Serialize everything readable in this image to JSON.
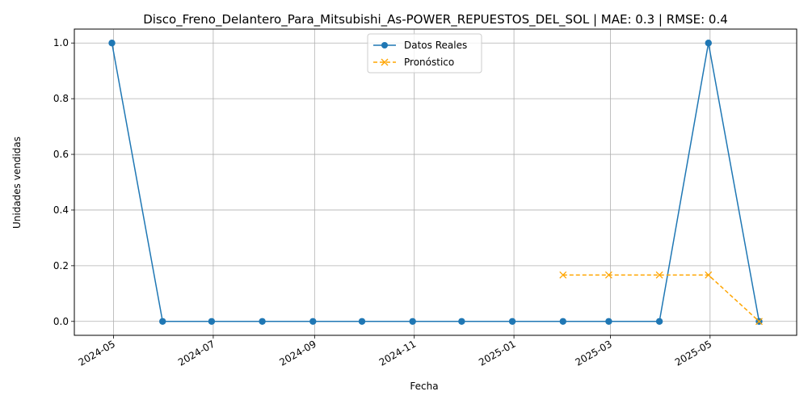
{
  "chart_data": {
    "type": "line",
    "title": "Disco_Freno_Delantero_Para_Mitsubishi_As-POWER_REPUESTOS_DEL_SOL | MAE: 0.3 | RMSE: 0.4",
    "xlabel": "Fecha",
    "ylabel": "Unidades vendidas",
    "grid": true,
    "legend_position": "top-center",
    "x_ticks": [
      "2024-05",
      "2024-07",
      "2024-09",
      "2024-11",
      "2025-01",
      "2025-03",
      "2025-05"
    ],
    "y_ticks": [
      "0.0",
      "0.2",
      "0.4",
      "0.6",
      "0.8",
      "1.0"
    ],
    "ylim": [
      -0.05,
      1.05
    ],
    "xlim": [
      "2024-04-07",
      "2025-06-23"
    ],
    "colors": {
      "real": "#1f77b4",
      "forecast": "#ffa500",
      "grid": "#b0b0b0"
    },
    "series": [
      {
        "name": "Datos Reales",
        "style": "solid-circle",
        "x": [
          "2024-04-30",
          "2024-05-31",
          "2024-06-30",
          "2024-07-31",
          "2024-08-31",
          "2024-09-30",
          "2024-10-31",
          "2024-11-30",
          "2024-12-31",
          "2025-01-31",
          "2025-02-28",
          "2025-03-31",
          "2025-04-30",
          "2025-05-31"
        ],
        "values": [
          1,
          0,
          0,
          0,
          0,
          0,
          0,
          0,
          0,
          0,
          0,
          0,
          1,
          0
        ]
      },
      {
        "name": "Pronóstico",
        "style": "dashed-x",
        "x": [
          "2025-01-31",
          "2025-02-28",
          "2025-03-31",
          "2025-04-30",
          "2025-05-31"
        ],
        "values": [
          0.1667,
          0.1667,
          0.1667,
          0.1667,
          0
        ]
      }
    ]
  }
}
